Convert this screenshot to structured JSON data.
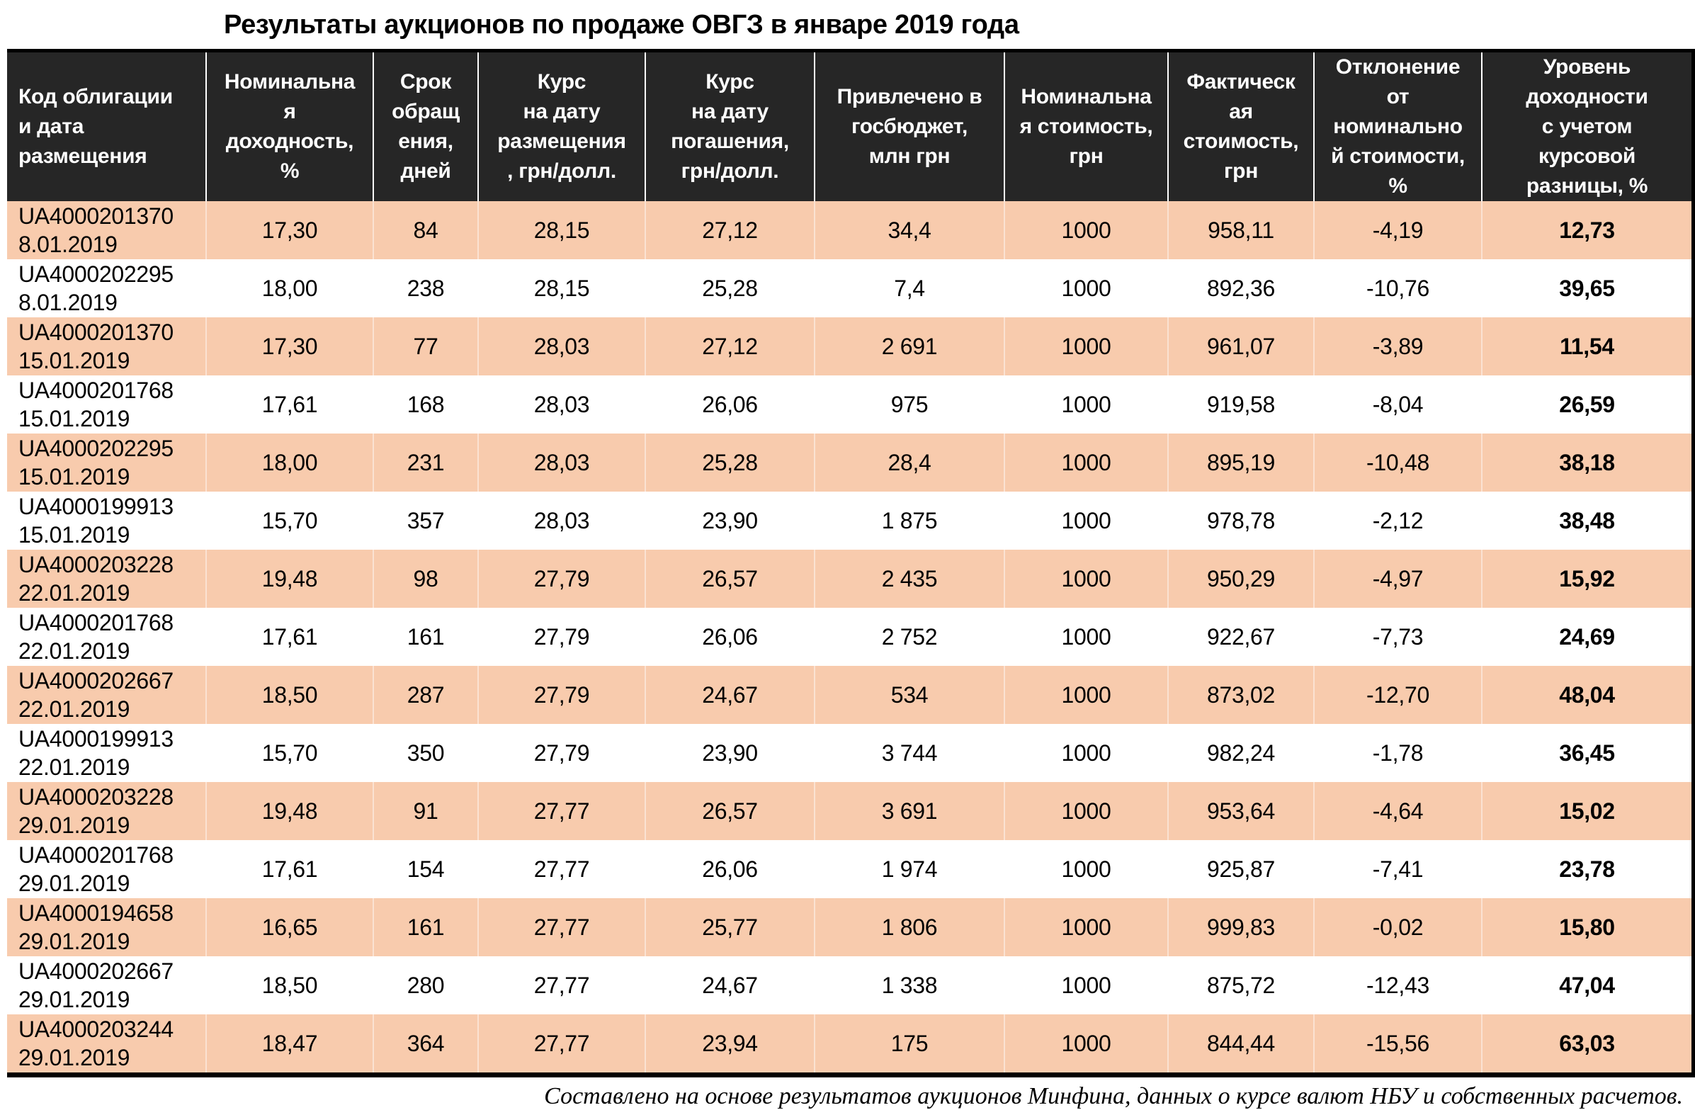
{
  "title": "Результаты аукционов по продаже ОВГЗ в январе 2019 года",
  "colors": {
    "header_bg": "#262626",
    "row_stripe": "#F8CBAD"
  },
  "table": {
    "columns": [
      {
        "label": "Код облигации\nи дата\nразмещения"
      },
      {
        "label": "Номинальна\nя\nдоходность,\n%"
      },
      {
        "label": "Срок\nобращ\nения,\nдней"
      },
      {
        "label": "Курс\nна дату\nразмещения\n, грн/долл."
      },
      {
        "label": "Курс\nна дату\nпогашения,\nгрн/долл."
      },
      {
        "label": "Привлечено в\nгосбюджет,\nмлн грн"
      },
      {
        "label": "Номинальна\nя стоимость,\nгрн"
      },
      {
        "label": "Фактическ\nая\nстоимость,\nгрн"
      },
      {
        "label": "Отклонение\nот\nноминально\nй стоимости,\n%"
      },
      {
        "label": "Уровень\nдоходности\nс учетом\nкурсовой\nразницы, %"
      }
    ],
    "rows": [
      {
        "code": "UA4000201370",
        "date": "8.01.2019",
        "values": [
          "17,30",
          "84",
          "28,15",
          "27,12",
          "34,4",
          "1000",
          "958,11",
          "-4,19",
          "12,73"
        ]
      },
      {
        "code": "UA4000202295",
        "date": "8.01.2019",
        "values": [
          "18,00",
          "238",
          "28,15",
          "25,28",
          "7,4",
          "1000",
          "892,36",
          "-10,76",
          "39,65"
        ]
      },
      {
        "code": "UA4000201370",
        "date": "15.01.2019",
        "values": [
          "17,30",
          "77",
          "28,03",
          "27,12",
          "2 691",
          "1000",
          "961,07",
          "-3,89",
          "11,54"
        ]
      },
      {
        "code": "UA4000201768",
        "date": "15.01.2019",
        "values": [
          "17,61",
          "168",
          "28,03",
          "26,06",
          "975",
          "1000",
          "919,58",
          "-8,04",
          "26,59"
        ]
      },
      {
        "code": "UA4000202295",
        "date": "15.01.2019",
        "values": [
          "18,00",
          "231",
          "28,03",
          "25,28",
          "28,4",
          "1000",
          "895,19",
          "-10,48",
          "38,18"
        ]
      },
      {
        "code": "UA4000199913",
        "date": "15.01.2019",
        "values": [
          "15,70",
          "357",
          "28,03",
          "23,90",
          "1 875",
          "1000",
          "978,78",
          "-2,12",
          "38,48"
        ]
      },
      {
        "code": "UA4000203228",
        "date": "22.01.2019",
        "values": [
          "19,48",
          "98",
          "27,79",
          "26,57",
          "2 435",
          "1000",
          "950,29",
          "-4,97",
          "15,92"
        ]
      },
      {
        "code": "UA4000201768",
        "date": "22.01.2019",
        "values": [
          "17,61",
          "161",
          "27,79",
          "26,06",
          "2 752",
          "1000",
          "922,67",
          "-7,73",
          "24,69"
        ]
      },
      {
        "code": "UA4000202667",
        "date": "22.01.2019",
        "values": [
          "18,50",
          "287",
          "27,79",
          "24,67",
          "534",
          "1000",
          "873,02",
          "-12,70",
          "48,04"
        ]
      },
      {
        "code": "UA4000199913",
        "date": "22.01.2019",
        "values": [
          "15,70",
          "350",
          "27,79",
          "23,90",
          "3 744",
          "1000",
          "982,24",
          "-1,78",
          "36,45"
        ]
      },
      {
        "code": "UA4000203228",
        "date": "29.01.2019",
        "values": [
          "19,48",
          "91",
          "27,77",
          "26,57",
          "3 691",
          "1000",
          "953,64",
          "-4,64",
          "15,02"
        ]
      },
      {
        "code": "UA4000201768",
        "date": "29.01.2019",
        "values": [
          "17,61",
          "154",
          "27,77",
          "26,06",
          "1 974",
          "1000",
          "925,87",
          "-7,41",
          "23,78"
        ]
      },
      {
        "code": "UA4000194658",
        "date": "29.01.2019",
        "values": [
          "16,65",
          "161",
          "27,77",
          "25,77",
          "1 806",
          "1000",
          "999,83",
          "-0,02",
          "15,80"
        ]
      },
      {
        "code": "UA4000202667",
        "date": "29.01.2019",
        "values": [
          "18,50",
          "280",
          "27,77",
          "24,67",
          "1 338",
          "1000",
          "875,72",
          "-12,43",
          "47,04"
        ]
      },
      {
        "code": "UA4000203244",
        "date": "29.01.2019",
        "values": [
          "18,47",
          "364",
          "27,77",
          "23,94",
          "175",
          "1000",
          "844,44",
          "-15,56",
          "63,03"
        ]
      }
    ]
  },
  "footer": "Составлено на основе результатов аукционов Минфина, данных о курсе валют НБУ и собственных расчетов."
}
